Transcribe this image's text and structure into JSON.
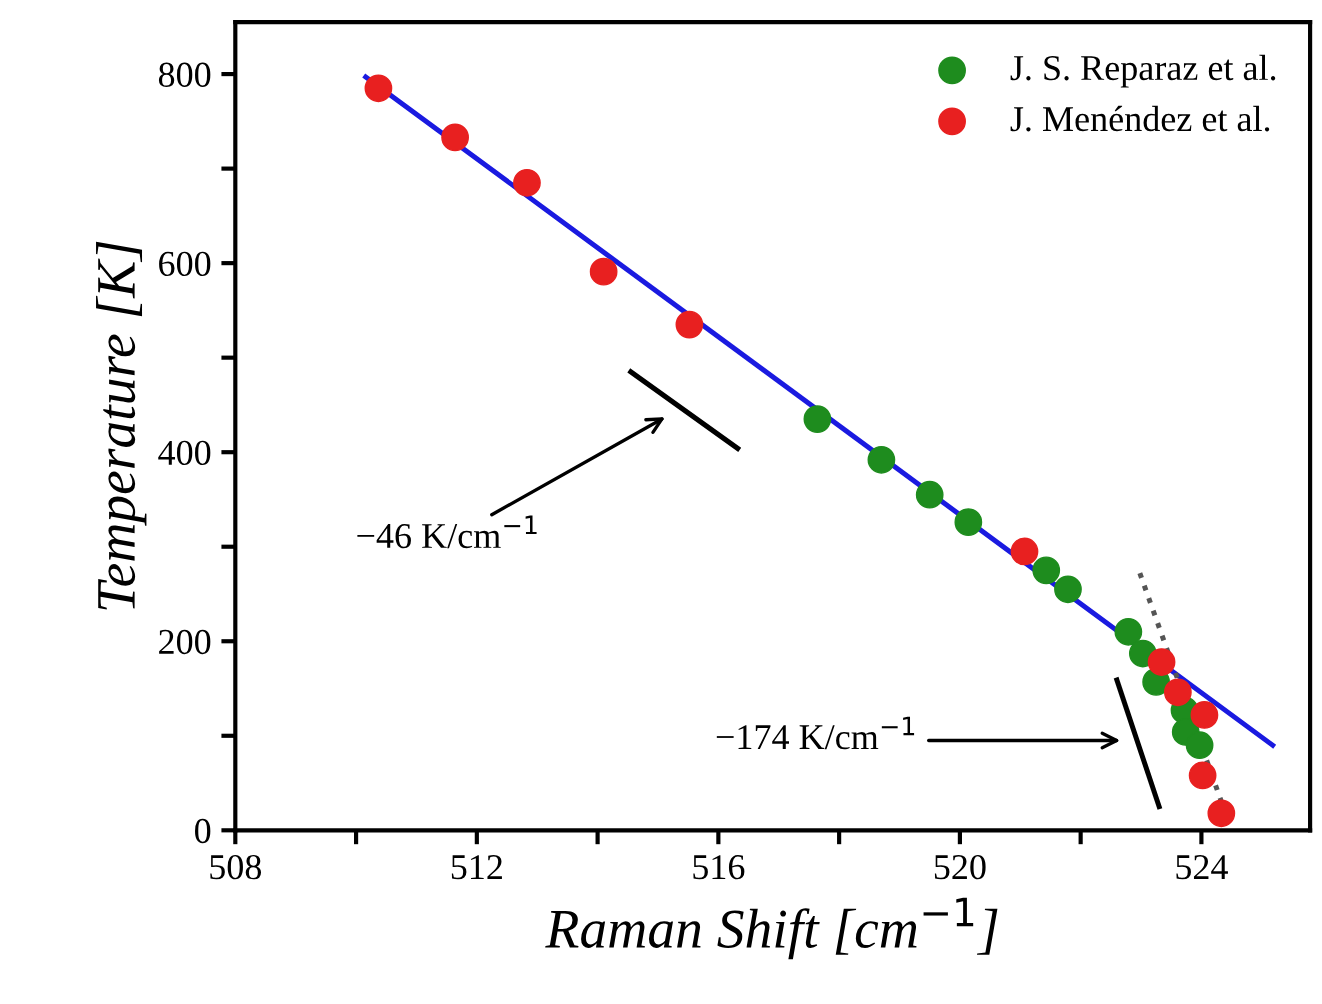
{
  "chart_data": {
    "type": "scatter",
    "xlabel": "Raman Shift [cm$^{−1}$]",
    "ylabel": "Temperature [K]",
    "xlim": [
      508,
      525.8
    ],
    "ylim": [
      0,
      855
    ],
    "xticks": [
      508,
      {
        "value": 510,
        "label": null
      },
      512,
      {
        "value": 514,
        "label": null
      },
      516,
      {
        "value": 518,
        "label": null
      },
      520,
      {
        "value": 522,
        "label": null
      },
      524
    ],
    "yticks": [
      0,
      {
        "value": 100,
        "label": null
      },
      200,
      {
        "value": 300,
        "label": null
      },
      400,
      {
        "value": 500,
        "label": null
      },
      600,
      {
        "value": 700,
        "label": null
      },
      800
    ],
    "legend": "top right",
    "marker": "circle",
    "grid": false,
    "series": [
      {
        "type": "line",
        "marker": "none",
        "color": "#1a1ae0",
        "x": [
          510.16,
          525.18
        ],
        "values": [
          797,
          90
        ]
      },
      {
        "type": "line",
        "marker": "none",
        "color": "#555555",
        "line_style": "dotted",
        "x": [
          522.98,
          524.4
        ],
        "values": [
          272,
          18
        ]
      },
      {
        "type": "line",
        "marker": "none",
        "color": "#000000",
        "x": [
          514.55,
          516.32
        ],
        "values": [
          485,
          404
        ]
      },
      {
        "type": "line",
        "marker": "none",
        "color": "#000000",
        "x": [
          522.6,
          523.3
        ],
        "values": [
          159,
          25
        ]
      },
      {
        "name": "J. S. Reparaz et al.",
        "color": "#1e8c1e",
        "x": [
          517.64,
          518.7,
          519.5,
          520.14,
          521.43,
          521.79,
          522.79,
          523.03,
          523.25,
          523.72,
          523.74,
          523.97
        ],
        "values": [
          435,
          392,
          355,
          326,
          275,
          255,
          210,
          187,
          157,
          127,
          104,
          90
        ]
      },
      {
        "name": "J. Menéndez et al.",
        "color": "#e82020",
        "x": [
          510.37,
          511.64,
          512.83,
          514.1,
          515.52,
          521.07,
          523.34,
          523.61,
          524.05,
          524.02,
          524.33
        ],
        "values": [
          785,
          733,
          685,
          591,
          535,
          295,
          178,
          146,
          122,
          58,
          18
        ]
      }
    ],
    "annotations": [
      {
        "text": "−46 K/cm$^{−1}$",
        "x": 515.2,
        "y": 440
      },
      {
        "text": "−174 K/cm$^{−1}$",
        "x": 522.75,
        "y": 95
      }
    ]
  }
}
